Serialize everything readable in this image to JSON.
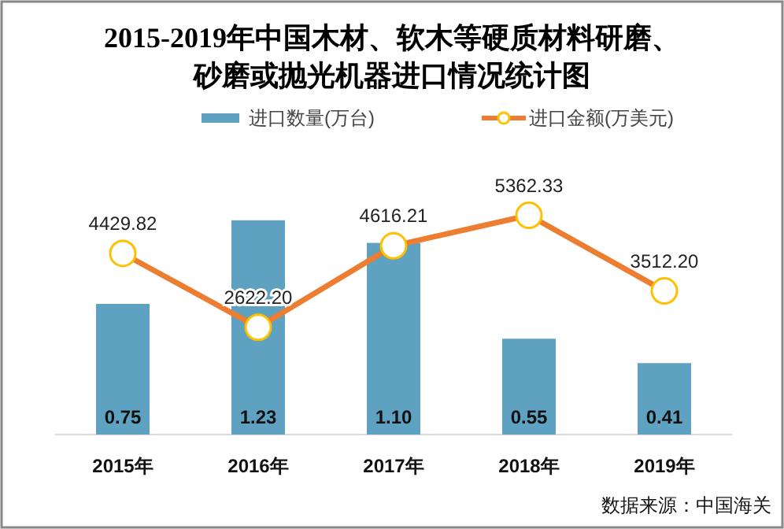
{
  "chart_data": {
    "type": "bar",
    "title": "2015-2019年中国木材、软木等硬质材料研磨、砂磨或抛光机器进口情况统计图",
    "categories": [
      "2015年",
      "2016年",
      "2017年",
      "2018年",
      "2019年"
    ],
    "series": [
      {
        "name": "进口数量(万台)",
        "color": "#5fa1c0",
        "values": [
          0.75,
          1.23,
          1.1,
          0.55,
          0.41
        ],
        "value_labels": [
          "0.75",
          "1.23",
          "1.10",
          "0.55",
          "0.41"
        ]
      },
      {
        "name": "进口金额(万美元)",
        "type": "line",
        "axis": "y2",
        "color": "#ed7d31",
        "marker": "circle",
        "values": [
          4429.82,
          2622.2,
          4616.21,
          5362.33,
          3512.2
        ],
        "value_labels": [
          "4429.82",
          "2622.20",
          "4616.21",
          "5362.33",
          "3512.20"
        ]
      }
    ],
    "legend": "top",
    "annotations": [
      "数据来源：中国海关"
    ]
  }
}
